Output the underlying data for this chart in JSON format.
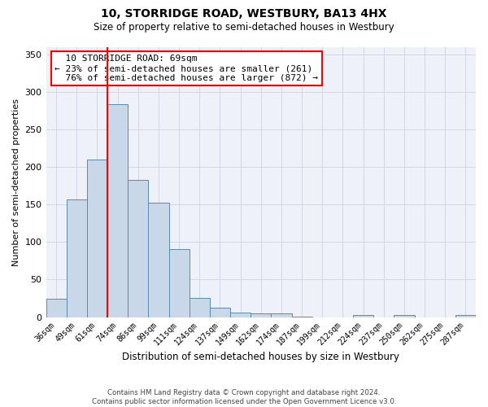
{
  "title_line1": "10, STORRIDGE ROAD, WESTBURY, BA13 4HX",
  "title_line2": "Size of property relative to semi-detached houses in Westbury",
  "xlabel": "Distribution of semi-detached houses by size in Westbury",
  "ylabel": "Number of semi-detached properties",
  "categories": [
    "36sqm",
    "49sqm",
    "61sqm",
    "74sqm",
    "86sqm",
    "99sqm",
    "111sqm",
    "124sqm",
    "137sqm",
    "149sqm",
    "162sqm",
    "174sqm",
    "187sqm",
    "199sqm",
    "212sqm",
    "224sqm",
    "237sqm",
    "250sqm",
    "262sqm",
    "275sqm",
    "287sqm"
  ],
  "values": [
    25,
    157,
    210,
    284,
    183,
    152,
    91,
    26,
    13,
    6,
    5,
    5,
    1,
    0,
    0,
    3,
    0,
    3,
    0,
    0,
    3
  ],
  "bar_color": "#c8d8e8",
  "bar_edge_color": "#5a8ab0",
  "property_label": "10 STORRIDGE ROAD: 69sqm",
  "pct_smaller": 23,
  "count_smaller": 261,
  "pct_larger": 76,
  "count_larger": 872,
  "vline_pos": 2.5,
  "vline_color": "red",
  "annotation_box_color": "white",
  "annotation_box_edge": "red",
  "ylim": [
    0,
    360
  ],
  "yticks": [
    0,
    50,
    100,
    150,
    200,
    250,
    300,
    350
  ],
  "grid_color": "#d0d8e8",
  "background_color": "#eef2f8",
  "footer_line1": "Contains HM Land Registry data © Crown copyright and database right 2024.",
  "footer_line2": "Contains public sector information licensed under the Open Government Licence v3.0."
}
